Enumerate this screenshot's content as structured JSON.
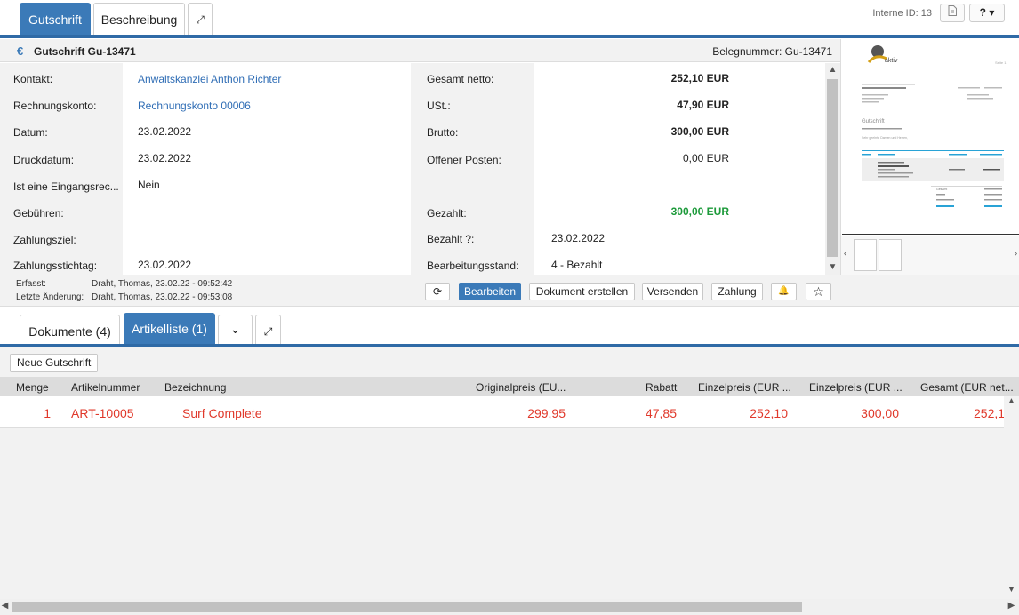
{
  "top_tabs": {
    "gutschrift": "Gutschrift",
    "beschreibung": "Beschreibung",
    "expand": "⤢"
  },
  "interne_id": "Interne ID: 13",
  "help": "? ▾",
  "header": {
    "currency_icon": "€",
    "title": "Gutschrift Gu-13471",
    "belegnummer": "Belegnummer: Gu-13471"
  },
  "left_fields": [
    {
      "label": "Kontakt:",
      "value": "Anwaltskanzlei Anthon Richter",
      "link": true
    },
    {
      "label": "Rechnungskonto:",
      "value": "Rechnungskonto 00006",
      "link": true
    },
    {
      "label": "Datum:",
      "value": "23.02.2022"
    },
    {
      "label": "Druckdatum:",
      "value": "23.02.2022"
    },
    {
      "label": "Ist eine Eingangsrec...",
      "value": "Nein"
    },
    {
      "label": "Gebühren:",
      "value": ""
    },
    {
      "label": "Zahlungsziel:",
      "value": ""
    },
    {
      "label": "Zahlungsstichtag:",
      "value": "23.02.2022"
    }
  ],
  "right_fields": [
    {
      "label": "Gesamt netto:",
      "value": "252,10 EUR"
    },
    {
      "label": "USt.:",
      "value": "47,90 EUR"
    },
    {
      "label": "Brutto:",
      "value": "300,00 EUR"
    },
    {
      "label": "Offener Posten:",
      "value": "0,00 EUR"
    },
    {
      "label": "Gezahlt:",
      "value": "300,00 EUR"
    },
    {
      "label": "Bezahlt ?:",
      "value": "23.02.2022"
    },
    {
      "label": "Bearbeitungsstand:",
      "value": "4 - Bezahlt"
    }
  ],
  "meta": {
    "erfasst_label": "Erfasst:",
    "erfasst_value": "Draht, Thomas, 23.02.22 - 09:52:42",
    "aenderung_label": "Letzte Änderung:",
    "aenderung_value": "Draht, Thomas, 23.02.22 - 09:53:08"
  },
  "actions": {
    "refresh": "⟳",
    "bearbeiten": "Bearbeiten",
    "dokument": "Dokument erstellen",
    "versenden": "Versenden",
    "zahlung": "Zahlung",
    "bell": "🔔",
    "star": "☆"
  },
  "lower_tabs": {
    "dokumente": "Dokumente (4)",
    "artikelliste": "Artikelliste (1)",
    "chevron": "⌄",
    "expand": "⤢"
  },
  "neue_gutschrift": "Neue Gutschrift",
  "grid": {
    "columns": [
      "Menge",
      "Artikelnummer",
      "Bezeichnung",
      "Originalpreis (EU...",
      "Rabatt",
      "Einzelpreis (EUR ...",
      "Einzelpreis (EUR ...",
      "Gesamt (EUR net..."
    ],
    "rows": [
      {
        "menge": "1",
        "artikelnummer": "ART-10005",
        "bezeichnung": "Surf Complete",
        "originalpreis": "299,95",
        "rabatt": "47,85",
        "einzelpreis_netto": "252,10",
        "einzelpreis_brutto": "300,00",
        "gesamt": "252,1"
      }
    ]
  },
  "preview": {
    "logo_text": "aktiv",
    "heading": "Gutschrift",
    "greeting": "Sehr geehrte Damen und Herren,",
    "total_label": "Gesamt",
    "page_label": "Seite 1"
  }
}
